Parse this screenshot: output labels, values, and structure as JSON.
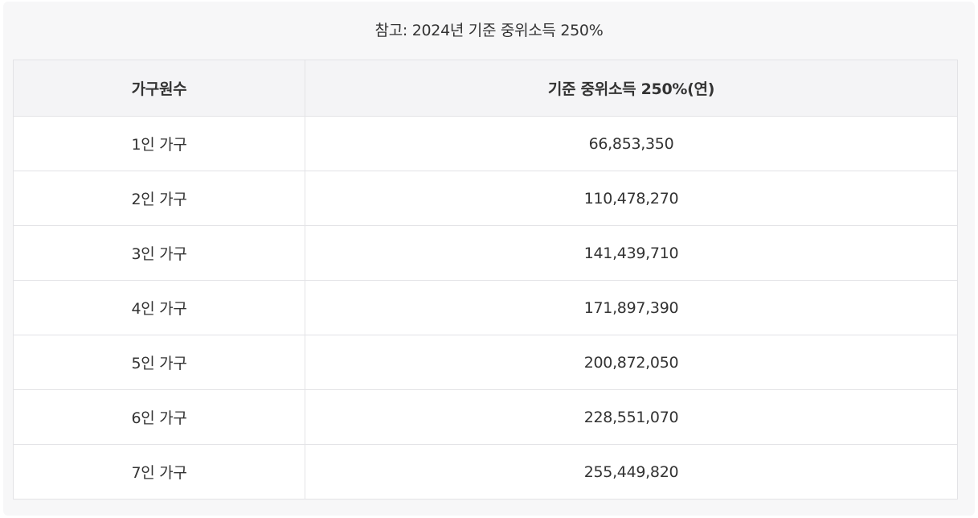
{
  "caption": "참고: 2024년 기준 중위소득 250%",
  "table": {
    "headers": [
      "가구원수",
      "기준 중위소득 250%(연)"
    ],
    "rows": [
      [
        "1인 가구",
        "66,853,350"
      ],
      [
        "2인 가구",
        "110,478,270"
      ],
      [
        "3인 가구",
        "141,439,710"
      ],
      [
        "4인 가구",
        "171,897,390"
      ],
      [
        "5인 가구",
        "200,872,050"
      ],
      [
        "6인 가구",
        "228,551,070"
      ],
      [
        "7인 가구",
        "255,449,820"
      ]
    ]
  }
}
